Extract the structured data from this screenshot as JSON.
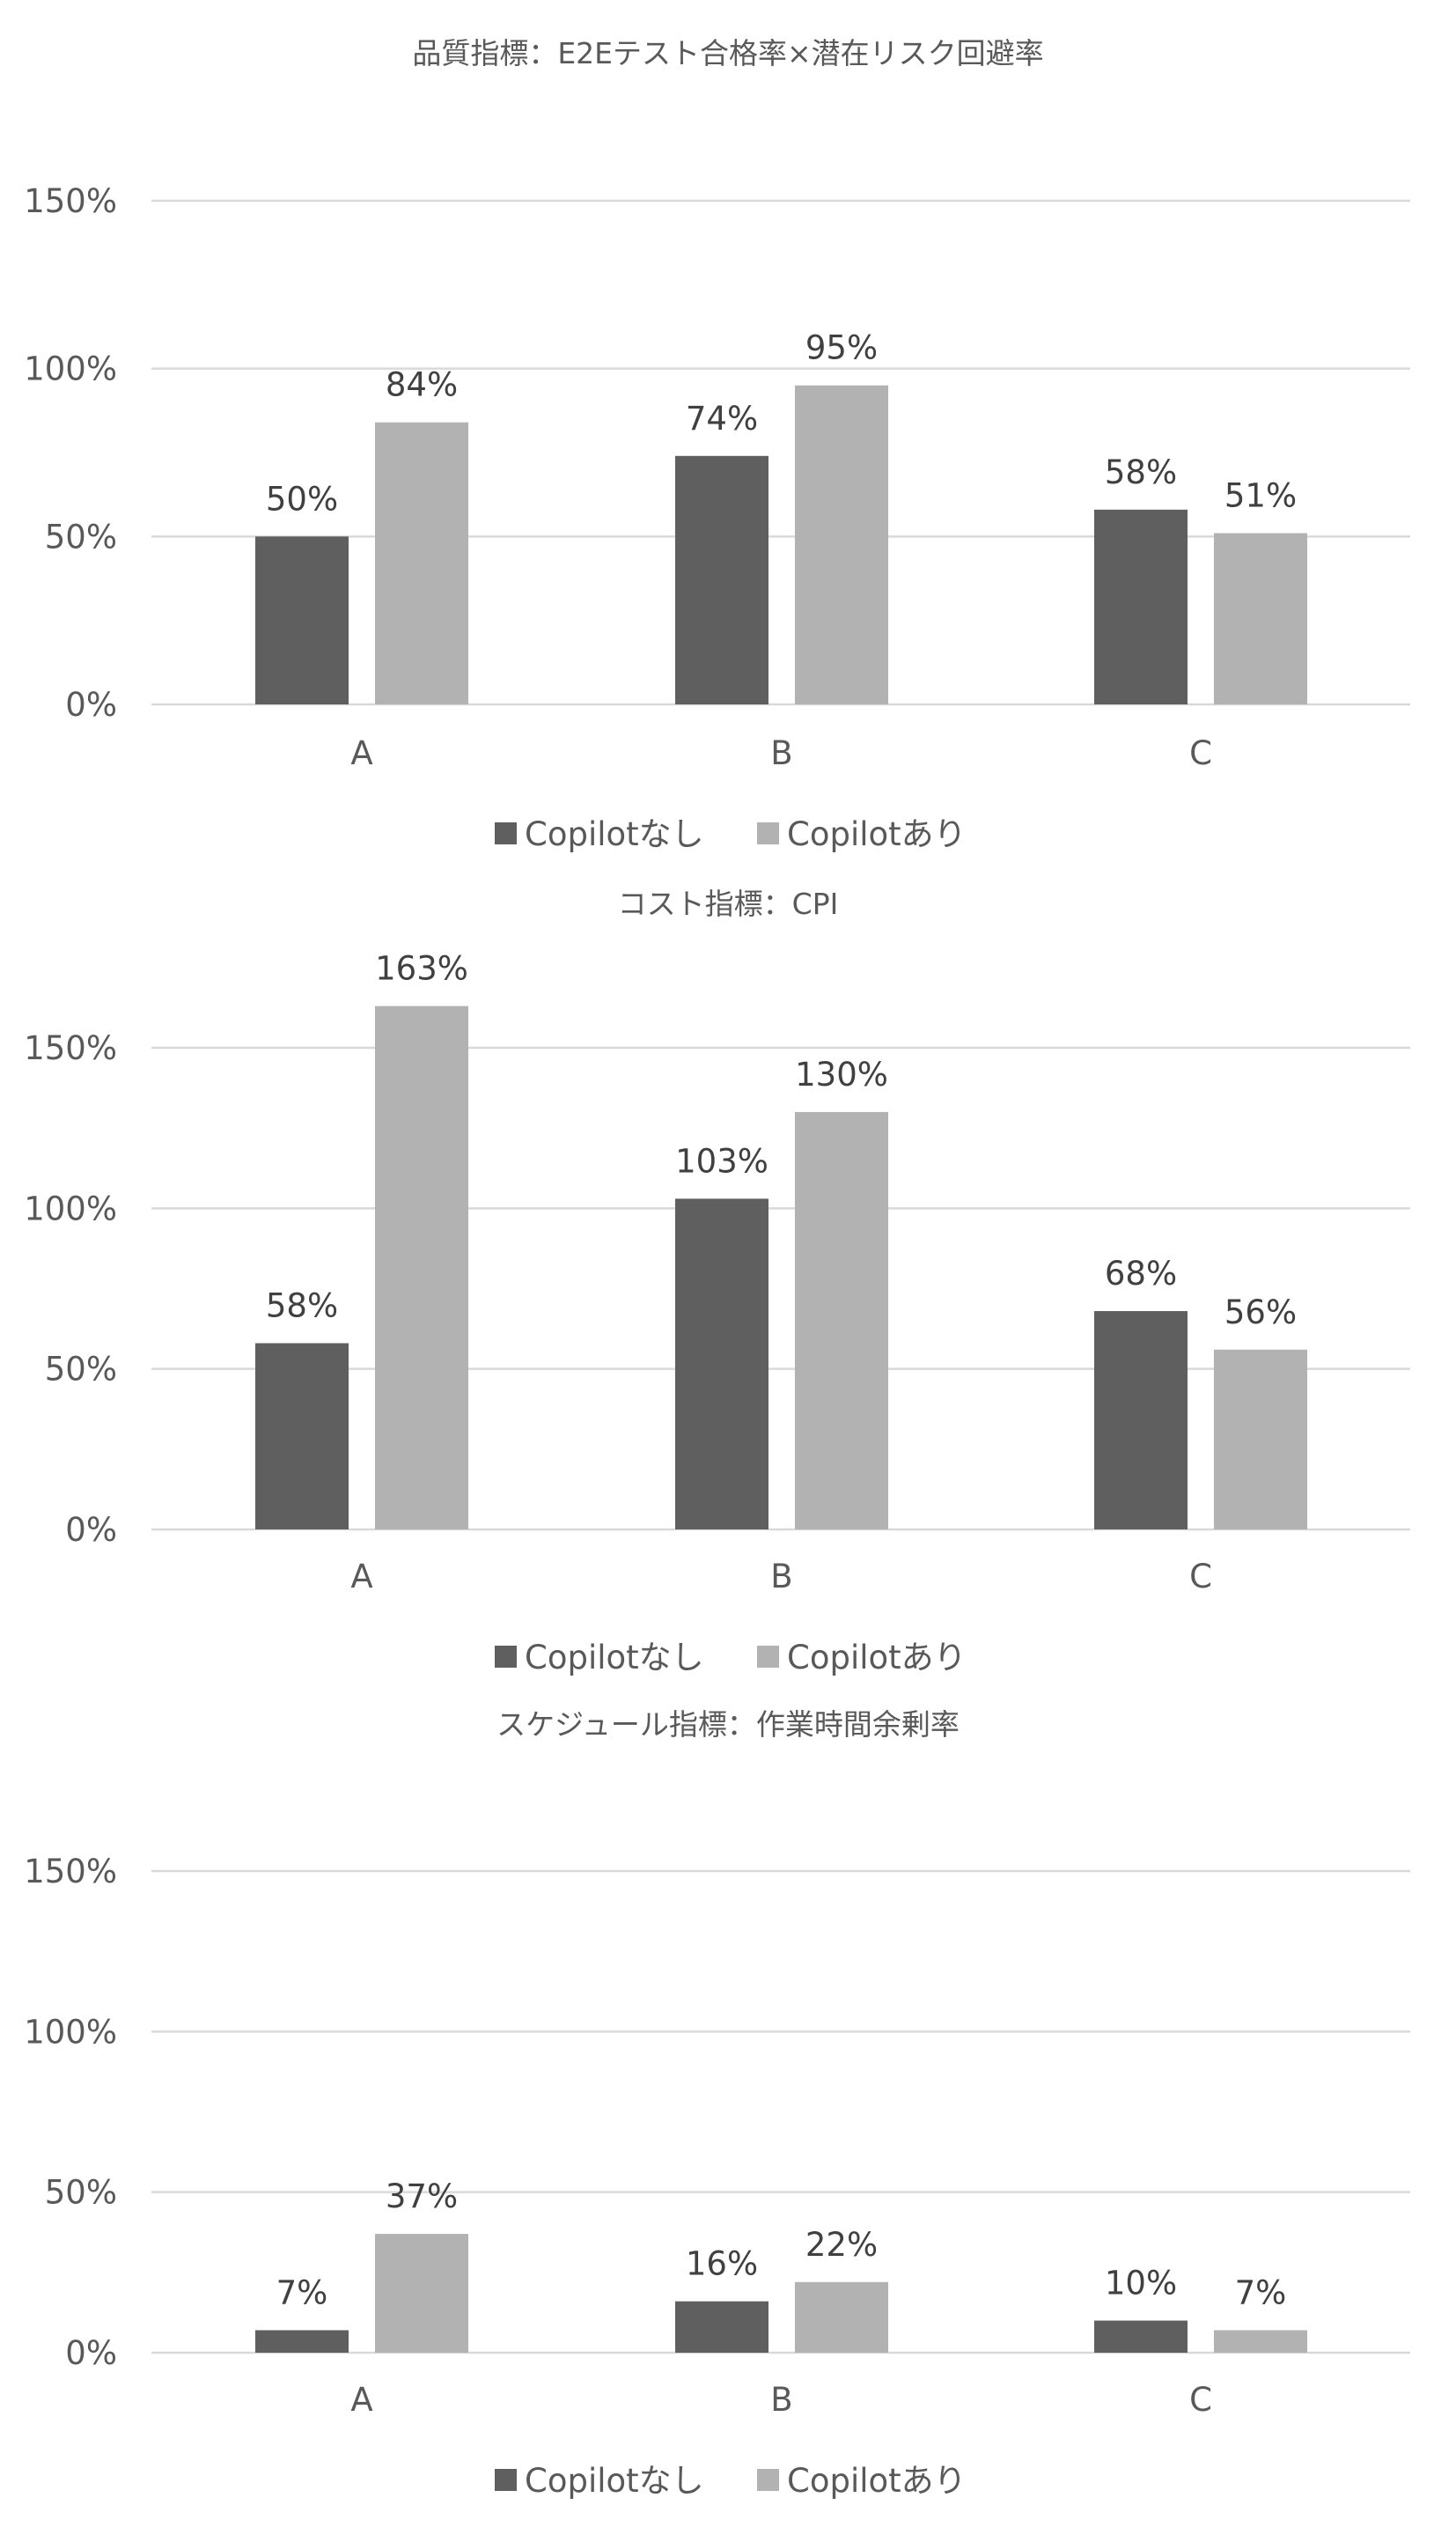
{
  "chart_data": [
    {
      "type": "bar",
      "title": "品質指標：E2Eテスト合格率×潜在リスク回避率",
      "categories": [
        "A",
        "B",
        "C"
      ],
      "series": [
        {
          "name": "Copilotなし",
          "values": [
            50,
            74,
            58
          ],
          "labels": [
            "50%",
            "74%",
            "58%"
          ],
          "color": "#5f5f5f"
        },
        {
          "name": "Copilotあり",
          "values": [
            84,
            95,
            51
          ],
          "labels": [
            "84%",
            "95%",
            "51%"
          ],
          "color": "#b2b2b2"
        }
      ],
      "ylim": [
        0,
        150
      ],
      "yticks": [
        0,
        50,
        100,
        150
      ],
      "ytick_labels": [
        "0%",
        "50%",
        "100%",
        "150%"
      ],
      "grid": true,
      "legend": "bottom"
    },
    {
      "type": "bar",
      "title": "コスト指標：CPI",
      "categories": [
        "A",
        "B",
        "C"
      ],
      "series": [
        {
          "name": "Copilotなし",
          "values": [
            58,
            103,
            68
          ],
          "labels": [
            "58%",
            "103%",
            "68%"
          ],
          "color": "#5f5f5f"
        },
        {
          "name": "Copilotあり",
          "values": [
            163,
            130,
            56
          ],
          "labels": [
            "163%",
            "130%",
            "56%"
          ],
          "color": "#b2b2b2"
        }
      ],
      "ylim": [
        0,
        150
      ],
      "yticks": [
        0,
        50,
        100,
        150
      ],
      "ytick_labels": [
        "0%",
        "50%",
        "100%",
        "150%"
      ],
      "grid": true,
      "legend": "bottom"
    },
    {
      "type": "bar",
      "title": "スケジュール指標：作業時間余剰率",
      "categories": [
        "A",
        "B",
        "C"
      ],
      "series": [
        {
          "name": "Copilotなし",
          "values": [
            7,
            16,
            10
          ],
          "labels": [
            "7%",
            "16%",
            "10%"
          ],
          "color": "#5f5f5f"
        },
        {
          "name": "Copilotあり",
          "values": [
            37,
            22,
            7
          ],
          "labels": [
            "37%",
            "22%",
            "7%"
          ],
          "color": "#b2b2b2"
        }
      ],
      "ylim": [
        0,
        150
      ],
      "yticks": [
        0,
        50,
        100,
        150
      ],
      "ytick_labels": [
        "0%",
        "50%",
        "100%",
        "150%"
      ],
      "grid": true,
      "legend": "bottom"
    }
  ]
}
